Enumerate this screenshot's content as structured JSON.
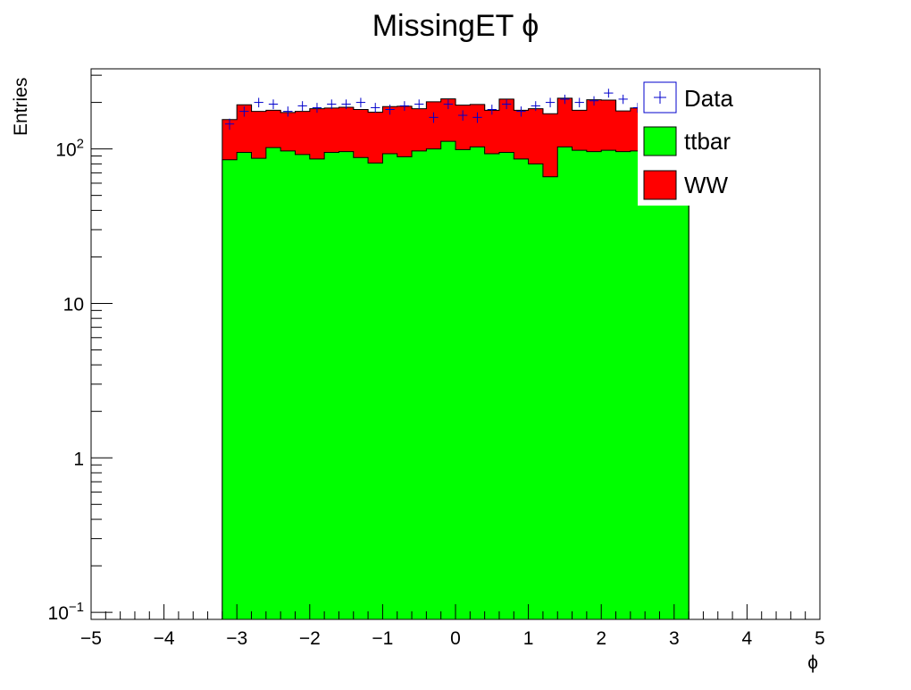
{
  "chart_data": {
    "type": "bar",
    "stacked": true,
    "title": "MissingET ϕ",
    "xlabel": "ϕ",
    "ylabel": "Entries",
    "xlim": [
      -5,
      5
    ],
    "ylim": [
      0.09,
      330
    ],
    "yscale": "log",
    "grid": false,
    "legend_position": "top-right",
    "x_tick_labels": [
      "−5",
      "−4",
      "−3",
      "−2",
      "−1",
      "0",
      "1",
      "2",
      "3",
      "4",
      "5"
    ],
    "x_ticks": [
      -5,
      -4,
      -3,
      -2,
      -1,
      0,
      1,
      2,
      3,
      4,
      5
    ],
    "y_tick_labels": [
      {
        "value": 0.1,
        "base": "10",
        "exp": "−1"
      },
      {
        "value": 1,
        "base": "1",
        "exp": ""
      },
      {
        "value": 10,
        "base": "10",
        "exp": ""
      },
      {
        "value": 100,
        "base": "10",
        "exp": "2"
      }
    ],
    "bin_edges_range": [
      -3.2,
      3.2
    ],
    "series": [
      {
        "name": "ttbar",
        "color": "#00ff00",
        "values": [
          85,
          95,
          87,
          102,
          97,
          92,
          86,
          95,
          96,
          88,
          81,
          93,
          89,
          97,
          100,
          112,
          99,
          103,
          93,
          95,
          86,
          80,
          66,
          103,
          98,
          96,
          98,
          96,
          97,
          95,
          96,
          98
        ]
      },
      {
        "name": "WW",
        "color": "#ff0000",
        "values": [
          70,
          98,
          88,
          76,
          75,
          83,
          96,
          89,
          90,
          92,
          92,
          95,
          100,
          85,
          102,
          99,
          93,
          91,
          85,
          115,
          92,
          102,
          103,
          110,
          80,
          112,
          109,
          80,
          87,
          82,
          84,
          60
        ]
      }
    ],
    "data_points": {
      "name": "Data",
      "color": "#0000cc",
      "values": [
        145,
        175,
        200,
        195,
        175,
        190,
        185,
        195,
        195,
        200,
        185,
        180,
        190,
        195,
        160,
        195,
        165,
        160,
        180,
        195,
        175,
        190,
        200,
        210,
        200,
        205,
        230,
        210,
        185,
        225,
        155,
        175
      ]
    }
  }
}
